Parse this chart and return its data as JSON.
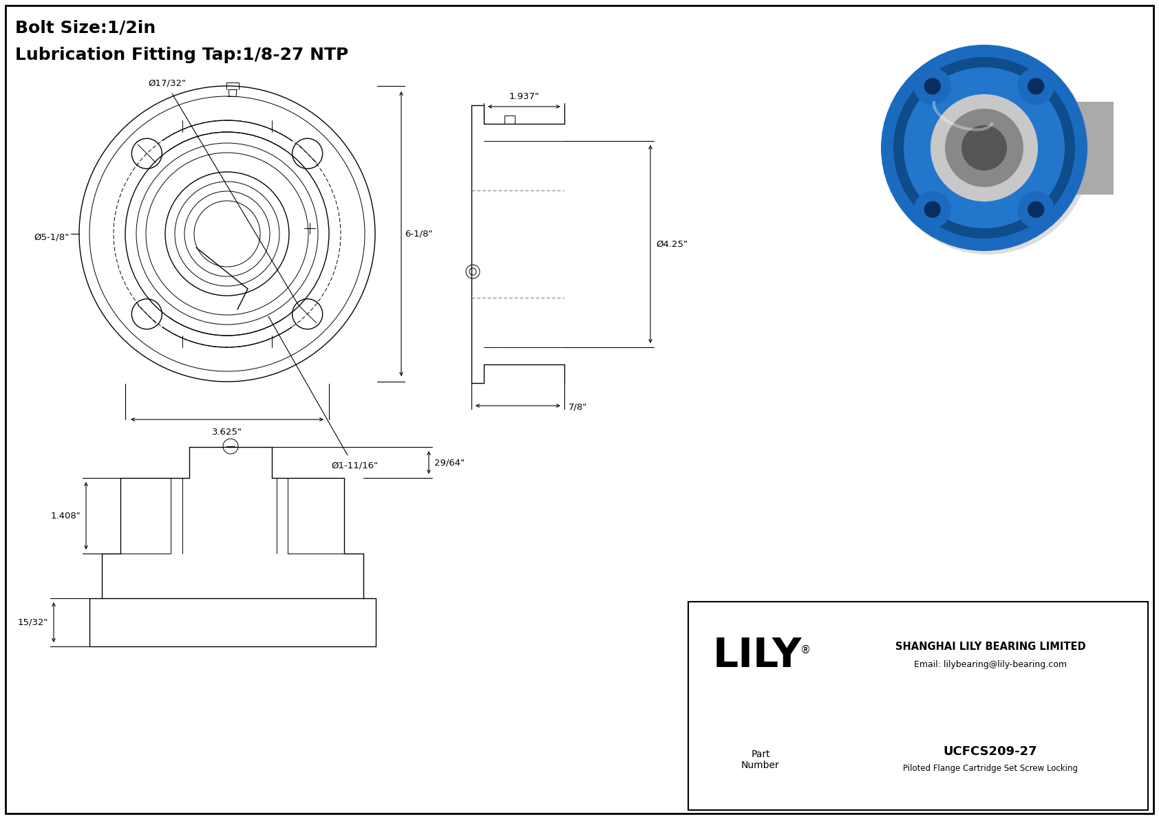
{
  "bg_color": "#ffffff",
  "border_color": "#000000",
  "title_line1": "Bolt Size:1/2in",
  "title_line2": "Lubrication Fitting Tap:1/8-27 NTP",
  "company_name": "SHANGHAI LILY BEARING LIMITED",
  "company_email": "Email: lilybearing@lily-bearing.com",
  "part_number_label": "Part\nNumber",
  "part_number": "UCFCS209-27",
  "part_desc": "Piloted Flange Cartridge Set Screw Locking",
  "lily_text": "LILY",
  "registered": "®",
  "dim_bolt_hole": "Ø17/32\"",
  "dim_flange_od": "Ø5-1/8\"",
  "dim_height": "6-1/8\"",
  "dim_width": "3.625\"",
  "dim_bore": "Ø1-11/16\"",
  "dim_side_width": "1.937\"",
  "dim_side_depth": "7/8\"",
  "dim_side_od": "Ø4.25\"",
  "dim_front_depth": "29/64\"",
  "dim_front_height": "1.408\"",
  "dim_front_foot": "15/32\""
}
